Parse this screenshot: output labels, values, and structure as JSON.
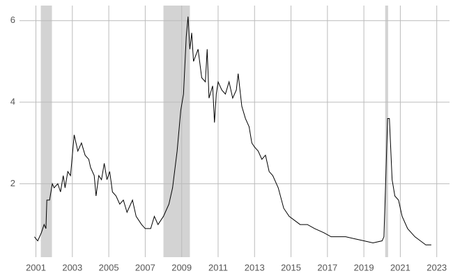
{
  "chart_data": {
    "type": "line",
    "x": [
      2000.92,
      2001.0,
      2001.1,
      2001.3,
      2001.45,
      2001.55,
      2001.6,
      2001.75,
      2001.9,
      2002.0,
      2002.2,
      2002.35,
      2002.5,
      2002.6,
      2002.75,
      2002.9,
      2003.0,
      2003.1,
      2003.3,
      2003.5,
      2003.7,
      2003.9,
      2004.0,
      2004.2,
      2004.3,
      2004.45,
      2004.6,
      2004.75,
      2004.9,
      2005.05,
      2005.2,
      2005.4,
      2005.6,
      2005.8,
      2006.0,
      2006.3,
      2006.5,
      2006.8,
      2007.0,
      2007.3,
      2007.5,
      2007.7,
      2008.0,
      2008.3,
      2008.5,
      2008.75,
      2008.95,
      2009.1,
      2009.25,
      2009.35,
      2009.45,
      2009.55,
      2009.65,
      2009.9,
      2010.1,
      2010.3,
      2010.4,
      2010.5,
      2010.7,
      2010.8,
      2010.9,
      2011.0,
      2011.2,
      2011.4,
      2011.6,
      2011.8,
      2012.0,
      2012.1,
      2012.3,
      2012.5,
      2012.7,
      2012.85,
      2013.0,
      2013.2,
      2013.4,
      2013.6,
      2013.8,
      2014.0,
      2014.3,
      2014.6,
      2014.9,
      2015.2,
      2015.5,
      2015.9,
      2016.3,
      2016.8,
      2017.2,
      2017.6,
      2018.0,
      2018.5,
      2019.0,
      2019.5,
      2020.0,
      2020.1,
      2020.2,
      2020.3,
      2020.4,
      2020.55,
      2020.7,
      2020.9,
      2021.1,
      2021.4,
      2021.8,
      2022.1,
      2022.4,
      2022.7
    ],
    "series": [
      {
        "color": "#000000",
        "values": [
          0.7,
          0.65,
          0.6,
          0.8,
          1.0,
          0.9,
          1.6,
          1.6,
          2.0,
          1.9,
          2.0,
          1.8,
          2.2,
          1.9,
          2.3,
          2.2,
          2.7,
          3.2,
          2.8,
          3.0,
          2.7,
          2.6,
          2.4,
          2.2,
          1.7,
          2.2,
          2.1,
          2.5,
          2.1,
          2.3,
          1.8,
          1.7,
          1.5,
          1.6,
          1.3,
          1.6,
          1.2,
          1.0,
          0.9,
          0.9,
          1.2,
          1.0,
          1.2,
          1.5,
          1.9,
          2.8,
          3.8,
          4.2,
          5.6,
          6.1,
          5.3,
          5.7,
          5.0,
          5.3,
          4.6,
          4.5,
          5.3,
          4.1,
          4.4,
          3.5,
          4.2,
          4.5,
          4.3,
          4.2,
          4.5,
          4.1,
          4.3,
          4.7,
          3.9,
          3.6,
          3.4,
          3.0,
          2.9,
          2.8,
          2.6,
          2.7,
          2.3,
          2.2,
          1.9,
          1.4,
          1.2,
          1.1,
          1.0,
          1.0,
          0.9,
          0.8,
          0.7,
          0.7,
          0.7,
          0.65,
          0.6,
          0.55,
          0.6,
          0.7,
          2.1,
          3.6,
          3.6,
          2.1,
          1.7,
          1.6,
          1.2,
          0.9,
          0.7,
          0.6,
          0.5,
          0.5
        ]
      }
    ],
    "shaded_periods": [
      [
        2001.27,
        2001.88
      ],
      [
        2008.0,
        2009.45
      ],
      [
        2020.17,
        2020.33
      ]
    ],
    "shade_color": "#d3d3d3",
    "xlim": [
      2000.1,
      2023.7
    ],
    "ylim": [
      0.2,
      6.37
    ],
    "xticks": [
      2001,
      2003,
      2005,
      2007,
      2009,
      2011,
      2013,
      2015,
      2017,
      2019,
      2021,
      2023
    ],
    "yticks": [
      2,
      4,
      6
    ],
    "grid": true
  }
}
